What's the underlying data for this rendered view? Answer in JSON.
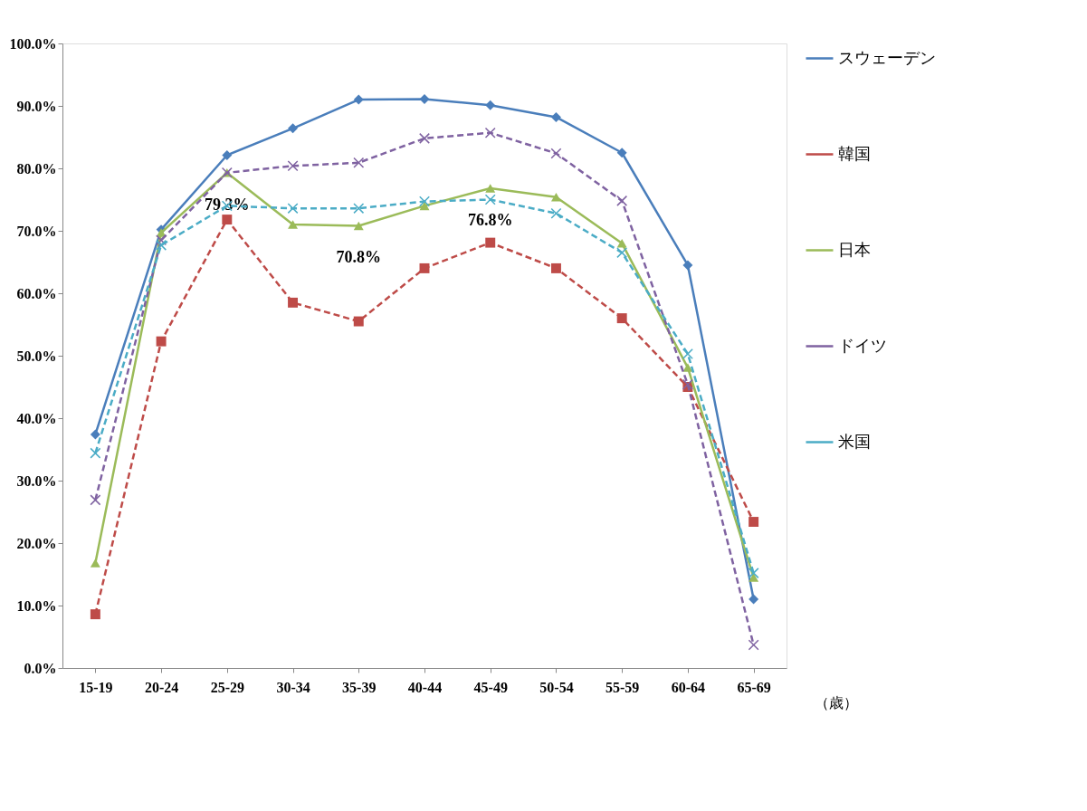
{
  "chart_data": {
    "type": "line",
    "categories": [
      "15-19",
      "20-24",
      "25-29",
      "30-34",
      "35-39",
      "40-44",
      "45-49",
      "50-54",
      "55-59",
      "60-64",
      "65-69"
    ],
    "xlabel": "（歳）",
    "ylim": [
      0,
      100
    ],
    "yticks": [
      {
        "value": 0,
        "label": "0.0%"
      },
      {
        "value": 10,
        "label": "10.0%"
      },
      {
        "value": 20,
        "label": "20.0%"
      },
      {
        "value": 30,
        "label": "30.0%"
      },
      {
        "value": 40,
        "label": "40.0%"
      },
      {
        "value": 50,
        "label": "50.0%"
      },
      {
        "value": 60,
        "label": "60.0%"
      },
      {
        "value": 70,
        "label": "70.0%"
      },
      {
        "value": 80,
        "label": "80.0%"
      },
      {
        "value": 90,
        "label": "90.0%"
      },
      {
        "value": 100,
        "label": "100.0%"
      }
    ],
    "grid": false,
    "legend": "right",
    "series": [
      {
        "name": "スウェーデン",
        "color": "#4a7ebb",
        "marker": "diamond",
        "line_style": "solid",
        "values": [
          37.4,
          70.2,
          82.1,
          86.4,
          91.0,
          91.1,
          90.1,
          88.2,
          82.5,
          64.5,
          11.0
        ]
      },
      {
        "name": "韓国",
        "color": "#be4b48",
        "marker": "square",
        "line_style": "dashed",
        "values": [
          8.6,
          52.3,
          71.8,
          58.5,
          55.5,
          64.0,
          68.1,
          64.0,
          56.0,
          45.0,
          23.4
        ]
      },
      {
        "name": "日本",
        "color": "#9bbb59",
        "marker": "triangle",
        "line_style": "solid",
        "values": [
          16.8,
          69.7,
          79.3,
          71.0,
          70.8,
          74.0,
          76.8,
          75.4,
          68.0,
          48.1,
          14.5
        ],
        "value_labels": [
          null,
          null,
          "79.3%",
          null,
          "70.8%",
          null,
          "76.8%",
          null,
          null,
          null,
          null
        ]
      },
      {
        "name": "ドイツ",
        "color": "#7f62a1",
        "marker": "cross",
        "line_style": "dashed",
        "values": [
          26.9,
          68.5,
          79.3,
          80.4,
          80.9,
          84.8,
          85.7,
          82.4,
          74.8,
          45.4,
          3.7
        ]
      },
      {
        "name": "米国",
        "color": "#4bacc6",
        "marker": "cross",
        "line_style": "dashed",
        "values": [
          34.4,
          67.7,
          74.0,
          73.6,
          73.6,
          74.7,
          75.0,
          72.8,
          66.5,
          50.3,
          15.2
        ]
      }
    ]
  }
}
